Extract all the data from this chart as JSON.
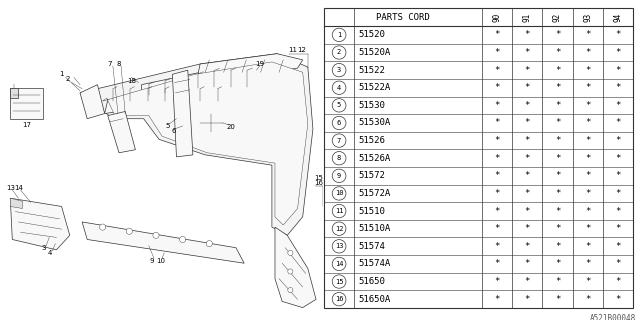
{
  "title": "",
  "table_header": "PARTS CORD",
  "columns": [
    "90",
    "91",
    "92",
    "93",
    "94"
  ],
  "rows": [
    {
      "num": 1,
      "part": "51520"
    },
    {
      "num": 2,
      "part": "51520A"
    },
    {
      "num": 3,
      "part": "51522"
    },
    {
      "num": 4,
      "part": "51522A"
    },
    {
      "num": 5,
      "part": "51530"
    },
    {
      "num": 6,
      "part": "51530A"
    },
    {
      "num": 7,
      "part": "51526"
    },
    {
      "num": 8,
      "part": "51526A"
    },
    {
      "num": 9,
      "part": "51572"
    },
    {
      "num": 10,
      "part": "51572A"
    },
    {
      "num": 11,
      "part": "51510"
    },
    {
      "num": 12,
      "part": "51510A"
    },
    {
      "num": 13,
      "part": "51574"
    },
    {
      "num": 14,
      "part": "51574A"
    },
    {
      "num": 15,
      "part": "51650"
    },
    {
      "num": 16,
      "part": "51650A"
    }
  ],
  "cell_value": "*",
  "watermark": "A521B00048",
  "bg_color": "#ffffff",
  "line_color": "#333333",
  "text_color": "#000000",
  "table_font_size": 6.5,
  "diagram_label_fontsize": 5.0
}
